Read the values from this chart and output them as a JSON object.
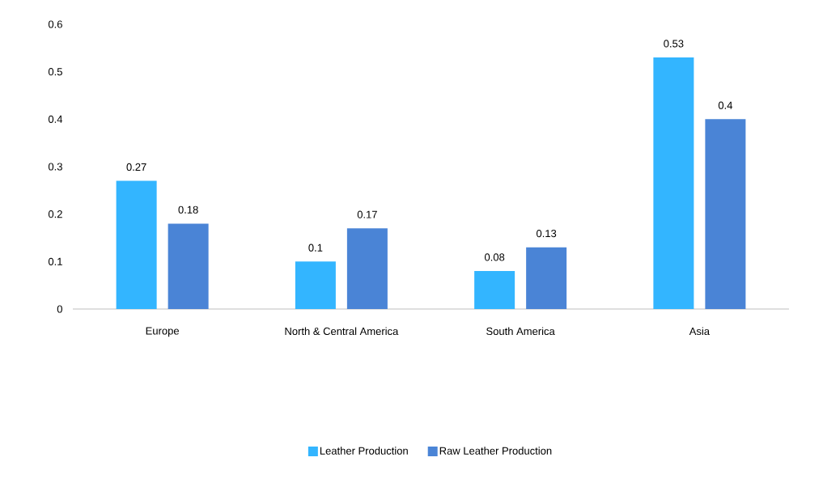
{
  "chart_data": {
    "type": "bar",
    "categories": [
      "Europe",
      "North & Central America",
      "South America",
      "Asia"
    ],
    "series": [
      {
        "name": "Leather Production",
        "color": "#33b5ff",
        "values": [
          0.27,
          0.1,
          0.08,
          0.53
        ]
      },
      {
        "name": "Raw Leather Production",
        "color": "#4a84d6",
        "values": [
          0.18,
          0.17,
          0.13,
          0.4
        ]
      }
    ],
    "ylim": [
      0,
      0.6
    ],
    "yticks": [
      0,
      0.1,
      0.2,
      0.3,
      0.4,
      0.5,
      0.6
    ],
    "data_labels": true,
    "grid": false,
    "legend": "bottom"
  }
}
